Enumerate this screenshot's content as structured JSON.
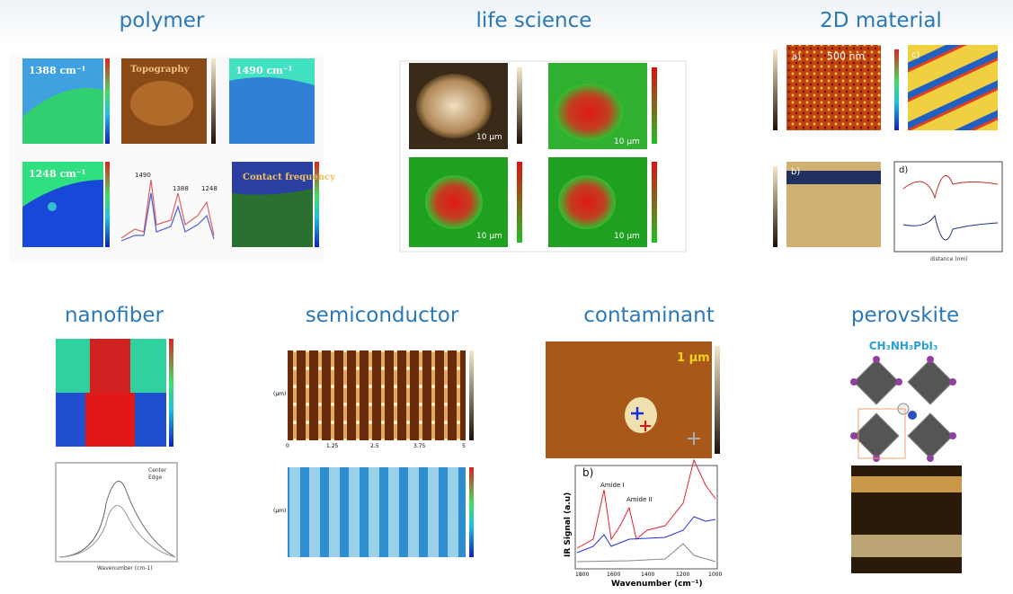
{
  "panels": [
    {
      "title": "polymer",
      "labels": [
        "1388 cm⁻¹",
        "Topography",
        "1490 cm⁻¹",
        "1248 cm⁻¹",
        "Contact frequency",
        "1490",
        "1388",
        "1248"
      ]
    },
    {
      "title": "life science",
      "labels": [
        "10 µm",
        "10 µm",
        "10 µm",
        "10 µm"
      ]
    },
    {
      "title": "2D material",
      "labels": [
        "a)",
        "500 nm",
        "c)",
        "b)",
        "d)",
        "distance (nm)"
      ]
    },
    {
      "title": "nanofiber",
      "labels": [
        "Center",
        "Edge",
        "Wavenumber (cm-1)"
      ]
    },
    {
      "title": "semiconductor",
      "labels": [
        "(µm)",
        "(µm)"
      ],
      "ticks": [
        "0",
        "1.25",
        "2.5",
        "3.75",
        "5"
      ]
    },
    {
      "title": "contaminant",
      "labels": [
        "1 µm",
        "b)",
        "Amide I",
        "Amide II",
        "IR Signal (a.u)",
        "Wavenumber (cm⁻¹)"
      ],
      "ticks": [
        "1800",
        "1600",
        "1400",
        "1200",
        "1000"
      ]
    },
    {
      "title": "perovskite",
      "formula": "CH₃NH₃PbI₃"
    }
  ]
}
